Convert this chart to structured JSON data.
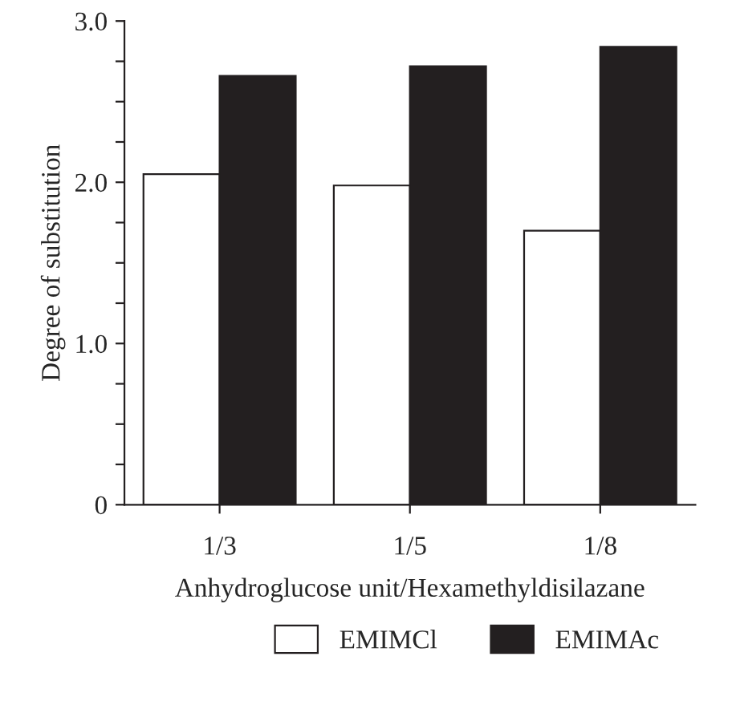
{
  "chart_data": {
    "type": "bar",
    "xlabel": "Anhydroglucose unit/Hexamethyldisilazane",
    "ylabel": "Degree of substitution",
    "categories": [
      "1/3",
      "1/5",
      "1/8"
    ],
    "series": [
      {
        "name": "EMIMCl",
        "color": "#ffffff",
        "values": [
          2.05,
          1.98,
          1.7
        ]
      },
      {
        "name": "EMIMAc",
        "color": "#231f20",
        "values": [
          2.66,
          2.72,
          2.84
        ]
      }
    ],
    "ylim": [
      0,
      3.0
    ],
    "yticks": [
      0,
      {
        "value": 0.25,
        "label": null
      },
      {
        "value": 0.5,
        "label": null
      },
      {
        "value": 0.75,
        "label": null
      },
      {
        "value": 1.0,
        "label": "1.0"
      },
      {
        "value": 1.25,
        "label": null
      },
      {
        "value": 1.5,
        "label": null
      },
      {
        "value": 1.75,
        "label": null
      },
      {
        "value": 2.0,
        "label": "2.0"
      },
      {
        "value": 2.25,
        "label": null
      },
      {
        "value": 2.5,
        "label": null
      },
      {
        "value": 2.75,
        "label": null
      },
      {
        "value": 3.0,
        "label": "3.0"
      }
    ],
    "grid": false,
    "legend": "bottom"
  }
}
